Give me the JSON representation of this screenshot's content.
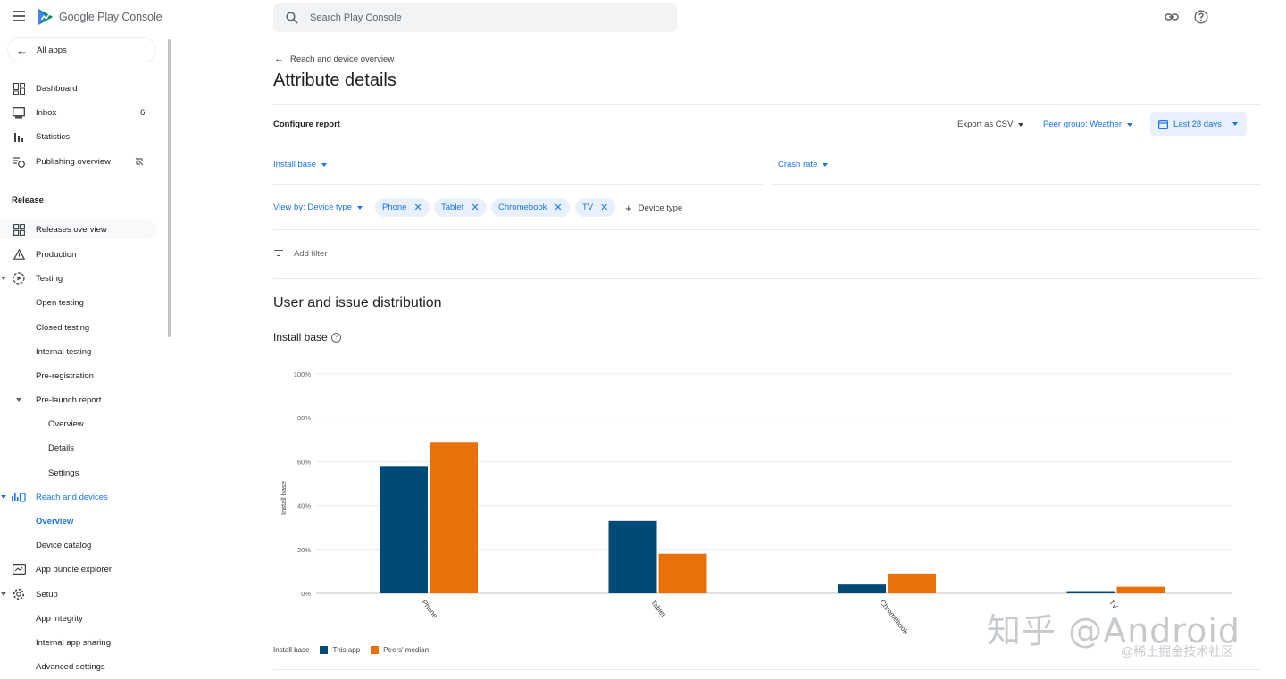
{
  "app": {
    "logo_text": "Google Play Console"
  },
  "sidebar": {
    "all_apps": "All apps",
    "items": [
      {
        "label": "Dashboard"
      },
      {
        "label": "Inbox",
        "badge": "6"
      },
      {
        "label": "Statistics"
      },
      {
        "label": "Publishing overview"
      }
    ],
    "release_label": "Release",
    "release_items": [
      {
        "label": "Releases overview"
      },
      {
        "label": "Production"
      },
      {
        "label": "Testing"
      },
      {
        "label": "Open testing"
      },
      {
        "label": "Closed testing"
      },
      {
        "label": "Internal testing"
      },
      {
        "label": "Pre-registration"
      },
      {
        "label": "Pre-launch report"
      },
      {
        "label": "Overview"
      },
      {
        "label": "Details"
      },
      {
        "label": "Settings"
      },
      {
        "label": "Reach and devices"
      },
      {
        "label": "Overview"
      },
      {
        "label": "Device catalog"
      },
      {
        "label": "App bundle explorer"
      },
      {
        "label": "Setup"
      },
      {
        "label": "App integrity"
      },
      {
        "label": "Internal app sharing"
      },
      {
        "label": "Advanced settings"
      }
    ]
  },
  "search": {
    "placeholder": "Search Play Console"
  },
  "breadcrumb": "Reach and device overview",
  "page_title": "Attribute details",
  "configure": {
    "label": "Configure report",
    "export": "Export as CSV",
    "peer_group": "Peer group: Weather",
    "date_range": "Last 28 days",
    "metric_left": "Install base",
    "metric_right": "Crash rate",
    "view_by": "View by: Device type",
    "chips": [
      "Phone",
      "Tablet",
      "Chromebook",
      "TV"
    ],
    "add_device": "Device type",
    "add_filter": "Add filter"
  },
  "section_title": "User and issue distribution",
  "chart_title": "Install base",
  "colors": {
    "this_app": "#004a77",
    "peers": "#e8710a",
    "accent": "#1a73e8"
  },
  "chart_data": {
    "type": "bar",
    "categories": [
      "Phone",
      "Tablet",
      "Chromebook",
      "TV"
    ],
    "series": [
      {
        "name": "This app",
        "values": [
          58,
          33,
          4,
          1
        ]
      },
      {
        "name": "Peers' median",
        "values": [
          69,
          18,
          9,
          3
        ]
      }
    ],
    "ylabel": "Install base",
    "ylim": [
      0,
      100
    ],
    "yticks": [
      "0%",
      "20%",
      "40%",
      "60%",
      "80%",
      "100%"
    ],
    "legend_title": "Install base",
    "legend": "bottom-left",
    "grid": true
  },
  "watermark": {
    "main": "知乎 @Android",
    "sub": "@稀土掘金技术社区"
  }
}
